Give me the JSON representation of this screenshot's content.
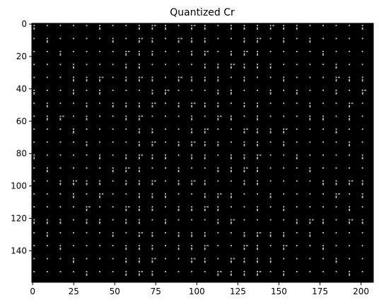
{
  "chart_data": {
    "type": "heatmap",
    "title": "Quantized Cr",
    "xlabel": "",
    "ylabel": "",
    "xlim": [
      0,
      208
    ],
    "ylim": [
      160,
      0
    ],
    "x_ticks": [
      0,
      25,
      50,
      75,
      100,
      125,
      150,
      175,
      200
    ],
    "y_ticks": [
      0,
      20,
      40,
      60,
      80,
      100,
      120,
      140
    ],
    "grid": false,
    "colormap": "gray",
    "background_color": "#000000",
    "cell_color": "#d8d8d8",
    "block_size": 8,
    "dot_pattern": {
      "description_values_only": false,
      "bright_cells": [
        [
          0,
          8
        ],
        [
          0,
          9
        ],
        [
          0,
          12
        ],
        [
          0,
          13
        ],
        [
          0,
          16
        ],
        [
          0,
          17
        ],
        [
          0,
          18
        ],
        [
          0,
          19
        ],
        [
          1,
          8
        ],
        [
          1,
          9
        ],
        [
          1,
          11
        ],
        [
          1,
          12
        ],
        [
          1,
          13
        ],
        [
          1,
          16
        ],
        [
          1,
          17
        ],
        [
          1,
          19
        ],
        [
          2,
          7
        ],
        [
          2,
          8
        ],
        [
          2,
          9
        ],
        [
          2,
          12
        ],
        [
          2,
          13
        ],
        [
          2,
          15
        ],
        [
          2,
          16
        ],
        [
          2,
          17
        ],
        [
          3,
          7
        ],
        [
          3,
          8
        ],
        [
          3,
          14
        ],
        [
          3,
          15
        ],
        [
          3,
          16
        ],
        [
          3,
          17
        ],
        [
          4,
          3
        ],
        [
          4,
          4
        ],
        [
          4,
          5
        ],
        [
          4,
          7
        ],
        [
          4,
          8
        ],
        [
          4,
          9
        ],
        [
          4,
          11
        ],
        [
          4,
          12
        ],
        [
          4,
          13
        ],
        [
          4,
          16
        ],
        [
          5,
          3
        ],
        [
          5,
          5
        ],
        [
          5,
          9
        ],
        [
          5,
          10
        ],
        [
          5,
          14
        ],
        [
          5,
          15
        ],
        [
          5,
          18
        ],
        [
          6,
          4
        ],
        [
          6,
          7
        ],
        [
          6,
          8
        ],
        [
          6,
          9
        ],
        [
          6,
          11
        ],
        [
          6,
          12
        ],
        [
          6,
          13
        ],
        [
          6,
          14
        ],
        [
          6,
          17
        ],
        [
          7,
          1
        ],
        [
          7,
          2
        ],
        [
          7,
          4
        ],
        [
          7,
          7
        ],
        [
          7,
          8
        ],
        [
          7,
          14
        ],
        [
          7,
          15
        ]
      ]
    }
  }
}
